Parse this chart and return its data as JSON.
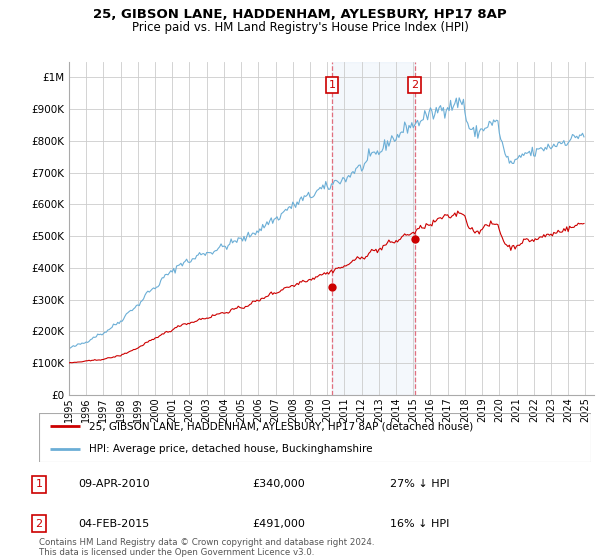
{
  "title1": "25, GIBSON LANE, HADDENHAM, AYLESBURY, HP17 8AP",
  "title2": "Price paid vs. HM Land Registry's House Price Index (HPI)",
  "legend_line1": "25, GIBSON LANE, HADDENHAM, AYLESBURY, HP17 8AP (detached house)",
  "legend_line2": "HPI: Average price, detached house, Buckinghamshire",
  "footer": "Contains HM Land Registry data © Crown copyright and database right 2024.\nThis data is licensed under the Open Government Licence v3.0.",
  "ytick_labels": [
    "£0",
    "£100K",
    "£200K",
    "£300K",
    "£400K",
    "£500K",
    "£600K",
    "£700K",
    "£800K",
    "£900K",
    "£1M"
  ],
  "yticks": [
    0,
    100000,
    200000,
    300000,
    400000,
    500000,
    600000,
    700000,
    800000,
    900000,
    1000000
  ],
  "hpi_color": "#6baed6",
  "sale_color": "#cc0000",
  "transaction1_x": 2010.27,
  "transaction1_y": 340000,
  "transaction2_x": 2015.09,
  "transaction2_y": 491000,
  "vline1_x": 2010.27,
  "vline2_x": 2015.09,
  "xlim_left": 1995.0,
  "xlim_right": 2025.5,
  "ylim_top": 1050000,
  "background_color": "#ffffff",
  "grid_color": "#cccccc",
  "hpi_base_values": [
    145000,
    148000,
    150000,
    152000,
    153000,
    155000,
    157000,
    159000,
    160000,
    162000,
    163000,
    164000,
    166000,
    169000,
    172000,
    175000,
    178000,
    181000,
    183000,
    186000,
    188000,
    190000,
    191000,
    192000,
    194000,
    197000,
    200000,
    203000,
    207000,
    210000,
    214000,
    218000,
    221000,
    224000,
    226000,
    228000,
    232000,
    237000,
    242000,
    247000,
    253000,
    258000,
    263000,
    267000,
    270000,
    273000,
    276000,
    278000,
    282000,
    287000,
    292000,
    298000,
    305000,
    312000,
    318000,
    323000,
    327000,
    330000,
    332000,
    333000,
    336000,
    340000,
    345000,
    351000,
    357000,
    363000,
    369000,
    374000,
    378000,
    381000,
    383000,
    384000,
    387000,
    391000,
    396000,
    402000,
    407000,
    411000,
    414000,
    416000,
    418000,
    419000,
    420000,
    421000,
    421000,
    422000,
    424000,
    427000,
    431000,
    436000,
    440000,
    443000,
    445000,
    446000,
    447000,
    447000,
    447000,
    447000,
    448000,
    449000,
    451000,
    453000,
    456000,
    459000,
    462000,
    464000,
    465000,
    466000,
    467000,
    468000,
    469000,
    471000,
    474000,
    477000,
    480000,
    483000,
    485000,
    487000,
    488000,
    489000,
    489000,
    490000,
    491000,
    493000,
    496000,
    499000,
    503000,
    506000,
    509000,
    512000,
    514000,
    516000,
    518000,
    520000,
    523000,
    527000,
    531000,
    536000,
    540000,
    544000,
    547000,
    549000,
    551000,
    552000,
    554000,
    556000,
    559000,
    563000,
    567000,
    572000,
    577000,
    582000,
    586000,
    589000,
    591000,
    592000,
    594000,
    596000,
    599000,
    603000,
    607000,
    611000,
    615000,
    618000,
    620000,
    622000,
    623000,
    624000,
    625000,
    627000,
    630000,
    634000,
    638000,
    642000,
    645000,
    647000,
    649000,
    650000,
    651000,
    651000,
    652000,
    654000,
    657000,
    661000,
    665000,
    669000,
    672000,
    674000,
    676000,
    677000,
    678000,
    678000,
    679000,
    681000,
    684000,
    688000,
    693000,
    698000,
    703000,
    707000,
    710000,
    712000,
    714000,
    715000,
    717000,
    720000,
    724000,
    729000,
    735000,
    741000,
    747000,
    752000,
    756000,
    759000,
    761000,
    762000,
    764000,
    767000,
    771000,
    776000,
    782000,
    788000,
    794000,
    799000,
    803000,
    806000,
    808000,
    809000,
    811000,
    814000,
    818000,
    823000,
    828000,
    833000,
    838000,
    842000,
    845000,
    847000,
    848000,
    849000,
    850000,
    851000,
    853000,
    856000,
    860000,
    865000,
    870000,
    874000,
    877000,
    879000,
    880000,
    881000,
    882000,
    883000,
    885000,
    888000,
    892000,
    896000,
    900000,
    903000,
    905000,
    906000,
    907000,
    907000,
    908000,
    909000,
    910000,
    912000,
    914000,
    917000,
    919000,
    921000,
    923000,
    924000,
    925000,
    926000,
    888000,
    870000,
    855000,
    843000,
    835000,
    830000,
    827000,
    826000,
    827000,
    828000,
    830000,
    832000,
    835000,
    838000,
    842000,
    846000,
    850000,
    853000,
    855000,
    856000,
    857000,
    857000,
    857000,
    857000,
    833000,
    810000,
    790000,
    773000,
    759000,
    748000,
    740000,
    735000,
    732000,
    731000,
    731000,
    732000,
    735000,
    739000,
    743000,
    748000,
    753000,
    757000,
    760000,
    762000,
    762000,
    762000,
    761000,
    761000,
    762000,
    763000,
    765000,
    767000,
    770000,
    773000,
    775000,
    777000,
    779000,
    780000,
    781000,
    782000,
    783000,
    784000,
    786000,
    788000,
    790000,
    792000,
    794000,
    796000,
    798000,
    799000,
    800000,
    800000,
    801000,
    802000,
    804000,
    806000,
    809000,
    812000,
    815000,
    817000,
    819000,
    820000,
    821000,
    821000
  ],
  "sale_base_values": [
    100000,
    100500,
    101000,
    101500,
    102000,
    102500,
    103000,
    103500,
    104000,
    104500,
    105000,
    105500,
    106000,
    106500,
    107000,
    107500,
    108000,
    108500,
    109000,
    109500,
    110000,
    110500,
    111000,
    111500,
    112000,
    113000,
    114000,
    115000,
    116000,
    117000,
    118000,
    119000,
    120000,
    121000,
    122000,
    123000,
    124000,
    126000,
    128000,
    130000,
    132000,
    134000,
    136000,
    138000,
    140000,
    142000,
    144000,
    145000,
    147000,
    150000,
    153000,
    156000,
    159000,
    162000,
    165000,
    167000,
    169000,
    171000,
    173000,
    174000,
    176000,
    178000,
    181000,
    184000,
    187000,
    190000,
    193000,
    196000,
    198000,
    200000,
    201000,
    202000,
    204000,
    206000,
    209000,
    212000,
    215000,
    218000,
    220000,
    222000,
    223000,
    224000,
    225000,
    225500,
    226000,
    227000,
    228000,
    230000,
    232000,
    234000,
    236000,
    238000,
    239000,
    240000,
    240500,
    241000,
    242000,
    243000,
    244000,
    246000,
    248000,
    250000,
    252000,
    254000,
    255000,
    256000,
    257000,
    257500,
    258000,
    259000,
    260000,
    262000,
    264000,
    266000,
    268000,
    270000,
    271000,
    272000,
    272500,
    273000,
    274000,
    275000,
    276000,
    278000,
    280000,
    283000,
    286000,
    289000,
    291000,
    293000,
    294000,
    295000,
    296000,
    298000,
    300000,
    303000,
    306000,
    309000,
    312000,
    315000,
    317000,
    319000,
    320000,
    320000,
    321000,
    322000,
    324000,
    327000,
    330000,
    333000,
    336000,
    338000,
    340000,
    341000,
    341500,
    342000,
    343000,
    344000,
    346000,
    349000,
    352000,
    355000,
    357000,
    359000,
    360000,
    361000,
    361500,
    362000,
    363000,
    364000,
    366000,
    369000,
    372000,
    375000,
    377000,
    379000,
    380000,
    381000,
    381500,
    382000,
    383000,
    384000,
    386000,
    389000,
    392000,
    395000,
    397000,
    399000,
    400000,
    401000,
    401500,
    402000,
    403000,
    405000,
    408000,
    412000,
    416000,
    420000,
    423000,
    425000,
    427000,
    428000,
    428500,
    429000,
    430000,
    432000,
    435000,
    439000,
    443000,
    447000,
    450000,
    452000,
    454000,
    455000,
    455500,
    456000,
    457000,
    459000,
    462000,
    466000,
    470000,
    474000,
    477000,
    479000,
    480000,
    481000,
    481500,
    482000,
    483000,
    485000,
    488000,
    492000,
    496000,
    500000,
    503000,
    505000,
    506000,
    507000,
    507500,
    508000,
    509000,
    511000,
    514000,
    518000,
    522000,
    526000,
    529000,
    531000,
    532000,
    533000,
    533500,
    534000,
    535000,
    537000,
    540000,
    544000,
    548000,
    552000,
    555000,
    557000,
    558000,
    559000,
    559500,
    560000,
    560000,
    561000,
    562000,
    564000,
    566000,
    568000,
    570000,
    572000,
    573000,
    574000,
    574500,
    575000,
    560000,
    548000,
    538000,
    530000,
    524000,
    520000,
    517000,
    516000,
    516000,
    517000,
    518000,
    519000,
    522000,
    525000,
    528000,
    531000,
    534000,
    536000,
    537000,
    538000,
    538000,
    537000,
    537000,
    537000,
    522000,
    508000,
    496000,
    486000,
    478000,
    472000,
    468000,
    466000,
    465000,
    465000,
    466000,
    467000,
    470000,
    473000,
    476000,
    479000,
    482000,
    484000,
    486000,
    487000,
    487000,
    487000,
    487000,
    487000,
    488000,
    489000,
    490000,
    492000,
    494000,
    496000,
    498000,
    500000,
    502000,
    503000,
    504000,
    504000,
    505000,
    506000,
    508000,
    510000,
    512000,
    514000,
    516000,
    518000,
    520000,
    521000,
    522000,
    522000,
    523000,
    524000,
    526000,
    528000,
    530000,
    532000,
    534000,
    536000,
    538000,
    539000,
    540000,
    540000
  ]
}
